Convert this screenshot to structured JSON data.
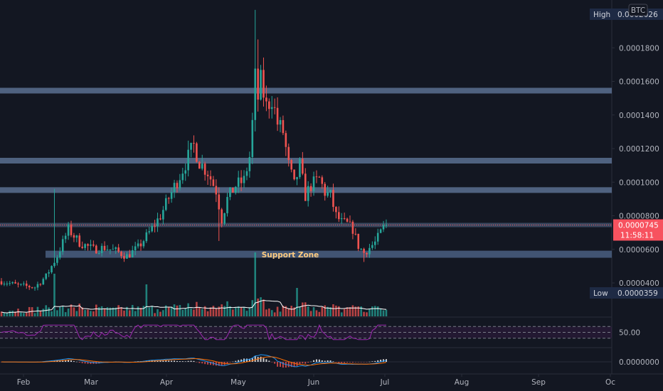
{
  "chart_data": {
    "type": "candlestick",
    "quote_badge": "BTC",
    "price_axis": {
      "ylim": [
        2.7e-05,
        0.000208
      ],
      "ticks": [
        "0.0000400",
        "0.0000600",
        "0.0000800",
        "0.0001000",
        "0.0001200",
        "0.0001400",
        "0.0001600",
        "0.0001800"
      ]
    },
    "high": {
      "label": "High",
      "value": "0.0002026"
    },
    "low": {
      "label": "Low",
      "value": "0.0000359"
    },
    "last_price": {
      "value": "0.0000745",
      "countdown": "11:58:11",
      "color": "#f7525f"
    },
    "time_axis": {
      "labels": [
        "Feb",
        "Mar",
        "Apr",
        "May",
        "Jun",
        "Jul",
        "Aug",
        "Sep",
        "Oc"
      ]
    },
    "horizontal_levels": [
      0.0001545,
      0.0001128,
      9.53e-05,
      7.45e-05
    ],
    "support_zone": {
      "label": "Support Zone",
      "low": 5.5e-05,
      "high": 5.92e-05
    },
    "colors": {
      "up": "#26a69a",
      "down": "#ef5350",
      "level": "#5b7090",
      "zone": "#4a5f80",
      "zone_text": "#ffcc80",
      "rsi": "#9c27b0",
      "macd": "#2196f3",
      "signal": "#ff6d00",
      "volume_ma": "#ffffff"
    },
    "rsi": {
      "ticks": [
        "50.00"
      ],
      "levels": [
        70,
        50,
        30
      ]
    },
    "macd": {
      "ticks": [
        "0.0000000"
      ]
    },
    "waypoints": [
      [
        0,
        4.1e-05
      ],
      [
        6,
        3.85e-05
      ],
      [
        12,
        3.75e-05
      ],
      [
        16,
        4.4e-05
      ],
      [
        20,
        5.6e-05
      ],
      [
        24,
        7.2e-05
      ],
      [
        28,
        6.4e-05
      ],
      [
        33,
        6e-05
      ],
      [
        37,
        6.1e-05
      ],
      [
        41,
        5.9e-05
      ],
      [
        45,
        5.6e-05
      ],
      [
        49,
        6.1e-05
      ],
      [
        53,
        7e-05
      ],
      [
        57,
        8e-05
      ],
      [
        61,
        9.4e-05
      ],
      [
        64,
        0.000104
      ],
      [
        67,
        0.000115
      ],
      [
        69,
        0.000122
      ],
      [
        71,
        0.000112
      ],
      [
        74,
        0.000106
      ],
      [
        77,
        9.5e-05
      ],
      [
        79,
        7.8e-05
      ],
      [
        81,
        9e-05
      ],
      [
        84,
        9.8e-05
      ],
      [
        87,
        0.000101
      ],
      [
        89,
        0.000115
      ],
      [
        90,
        0.000135
      ],
      [
        91,
        0.000162
      ],
      [
        92,
        0.00015
      ],
      [
        93,
        0.00016
      ],
      [
        95,
        0.000145
      ],
      [
        97,
        0.00015
      ],
      [
        99,
        0.000135
      ],
      [
        101,
        0.00013
      ],
      [
        103,
        0.00011
      ],
      [
        105,
        9.8e-05
      ],
      [
        107,
        0.00011
      ],
      [
        109,
        9.2e-05
      ],
      [
        111,
        9.8e-05
      ],
      [
        114,
        0.000102
      ],
      [
        116,
        9.4e-05
      ],
      [
        118,
        9.2e-05
      ],
      [
        120,
        8e-05
      ],
      [
        122,
        7.6e-05
      ],
      [
        124,
        7.5e-05
      ],
      [
        126,
        7.2e-05
      ],
      [
        128,
        6.2e-05
      ],
      [
        130,
        5.8e-05
      ],
      [
        132,
        6.1e-05
      ],
      [
        134,
        6.4e-05
      ],
      [
        136,
        7e-05
      ],
      [
        138,
        7.6e-05
      ]
    ]
  }
}
